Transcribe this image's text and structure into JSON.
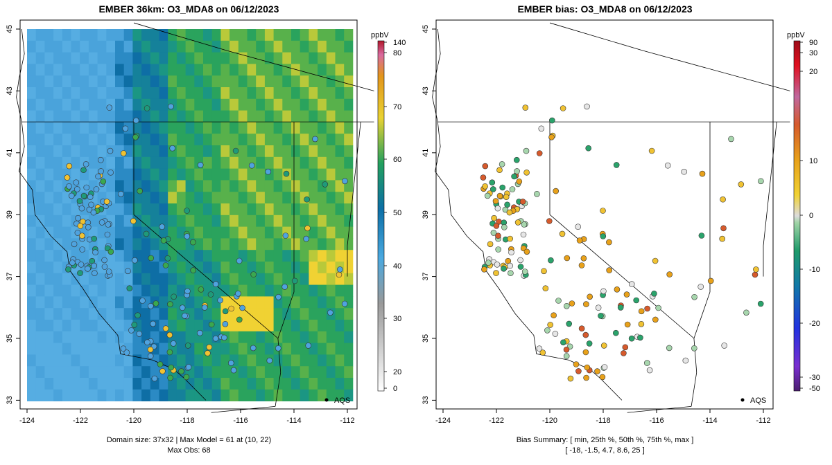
{
  "left": {
    "title": "EMBER 36km: O3_MDA8 on 06/12/2023",
    "domain_line": "Domain size: 37x32 | Max Model = 61 at (10, 22)",
    "obs_line": "Max Obs: 68",
    "legend_units": "ppbV",
    "legend_ticks": [
      "140",
      "80",
      "70",
      "60",
      "50",
      "40",
      "30",
      "20",
      "0"
    ],
    "aqs_label": "AQS"
  },
  "right": {
    "title": "EMBER bias: O3_MDA8 on 06/12/2023",
    "summary_line1": "Bias Summary: [ min, 25th %, 50th %, 75th %, max ]",
    "summary_line2": "[ -18,   -1.5,   4.7,   8.6,   25 ]",
    "legend_units": "ppbV",
    "legend_ticks": [
      "90",
      "30",
      "20",
      "10",
      "0",
      "-10",
      "-20",
      "-30",
      "-50"
    ],
    "aqs_label": "AQS"
  },
  "axes": {
    "x_ticks": [
      "-124",
      "-122",
      "-120",
      "-118",
      "-116",
      "-114",
      "-112"
    ],
    "y_ticks": [
      "33",
      "35",
      "37",
      "39",
      "41",
      "43",
      "45"
    ]
  },
  "colors": {
    "model_low": "#4fa9e0",
    "model_mid": "#1a9a86",
    "model_high": "#f0d233",
    "bias_pos": "#e8a11a",
    "bias_neg": "#2aa36b"
  }
}
